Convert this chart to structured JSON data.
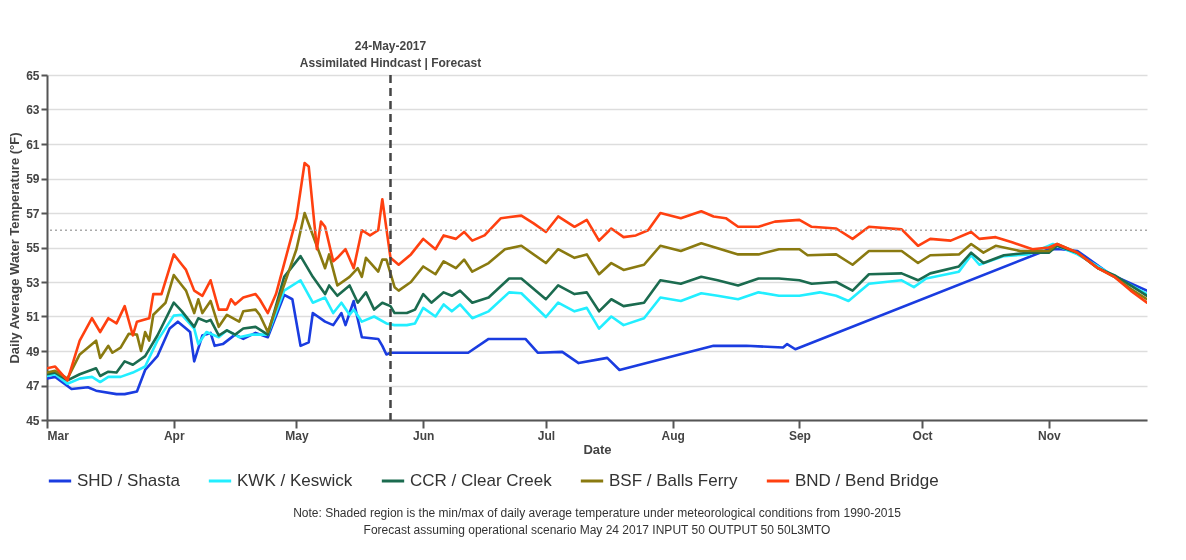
{
  "chart_data": {
    "type": "line",
    "xlabel": "Date",
    "ylabel": "Daily Average Water Temperature (°F)",
    "xlim": [
      "--03-01",
      "--11-25"
    ],
    "ylim": [
      45,
      65
    ],
    "yticks": [
      45,
      47,
      49,
      51,
      53,
      55,
      57,
      59,
      61,
      63,
      65
    ],
    "xticks": [
      {
        "value": "--03-01",
        "label": "Mar"
      },
      {
        "value": "--04-01",
        "label": "Apr"
      },
      {
        "value": "--05-01",
        "label": "May"
      },
      {
        "value": "--06-01",
        "label": "Jun"
      },
      {
        "value": "--07-01",
        "label": "Jul"
      },
      {
        "value": "--08-01",
        "label": "Aug"
      },
      {
        "value": "--09-01",
        "label": "Sep"
      },
      {
        "value": "--10-01",
        "label": "Oct"
      },
      {
        "value": "--11-01",
        "label": "Nov"
      }
    ],
    "grid": "y",
    "legend": "bottom",
    "line_style": "solid",
    "ref_lines": [
      {
        "axis": "x",
        "value": "--05-24",
        "label": "24-May-2017",
        "line_style": "dashed",
        "color": "#444444"
      },
      {
        "axis": "y",
        "value": 56,
        "line_style": "dotted",
        "color": "#aaaaaa"
      }
    ],
    "annotations": [
      {
        "text": "Assimilated Hindcast | Forecast",
        "x": "--05-24",
        "y": 65
      },
      "Note: Shaded region is the min/max of daily average temperature under meteorological conditions from 1990-2015",
      "Forecast assuming operational scenario May 24 2017 INPUT 50 OUTPUT 50 50L3MTO"
    ],
    "series": [
      {
        "name": "SHD / Shasta",
        "color": "#1a3ce0",
        "x": [
          "--03-01",
          "--03-03",
          "--03-07",
          "--03-11",
          "--03-13",
          "--03-18",
          "--03-20",
          "--03-23",
          "--03-25",
          "--03-28",
          "--03-31",
          "--04-02",
          "--04-04",
          "--04-05",
          "--04-06",
          "--04-08",
          "--04-10",
          "--04-11",
          "--04-13",
          "--04-16",
          "--04-18",
          "--04-21",
          "--04-24",
          "--04-28",
          "--04-30",
          "--05-02",
          "--05-04",
          "--05-05",
          "--05-08",
          "--05-10",
          "--05-12",
          "--05-13",
          "--05-15",
          "--05-17",
          "--05-21",
          "--05-22",
          "--05-23",
          "--05-24",
          "--06-01",
          "--06-12",
          "--06-17",
          "--06-26",
          "--06-29",
          "--07-05",
          "--07-09",
          "--07-16",
          "--07-19",
          "--08-01",
          "--08-11",
          "--08-19",
          "--08-28",
          "--08-29",
          "--08-31",
          "--11-01",
          "--11-04",
          "--11-08",
          "--11-16",
          "--11-25"
        ],
        "values": [
          47.4,
          47.5,
          46.8,
          46.9,
          46.7,
          46.5,
          46.5,
          46.65,
          47.9,
          48.7,
          50.3,
          50.7,
          50.3,
          50.1,
          48.4,
          49.9,
          50.05,
          49.3,
          49.4,
          49.95,
          49.7,
          50.05,
          49.8,
          52.25,
          52.0,
          49.3,
          49.5,
          51.2,
          50.7,
          50.5,
          51.2,
          50.5,
          51.9,
          49.8,
          49.7,
          49.3,
          48.8,
          48.9,
          48.9,
          48.9,
          49.7,
          49.7,
          48.9,
          48.95,
          48.3,
          48.6,
          47.9,
          48.7,
          49.3,
          49.3,
          49.2,
          49.4,
          49.1,
          54.9,
          54.9,
          54.8,
          53.45,
          52.5
        ]
      },
      {
        "name": "KWK / Keswick",
        "color": "#22eeff",
        "x": [
          "--03-01",
          "--03-03",
          "--03-06",
          "--03-09",
          "--03-12",
          "--03-14",
          "--03-16",
          "--03-19",
          "--03-22",
          "--03-25",
          "--03-28",
          "--04-01",
          "--04-03",
          "--04-06",
          "--04-07",
          "--04-09",
          "--04-12",
          "--04-14",
          "--04-17",
          "--04-20",
          "--04-24",
          "--04-28",
          "--05-02",
          "--05-05",
          "--05-08",
          "--05-10",
          "--05-12",
          "--05-14",
          "--05-15",
          "--05-17",
          "--05-20",
          "--05-23",
          "--05-25",
          "--05-28",
          "--05-30",
          "--06-01",
          "--06-04",
          "--06-06",
          "--06-08",
          "--06-10",
          "--06-13",
          "--06-17",
          "--06-22",
          "--06-25",
          "--07-01",
          "--07-04",
          "--07-08",
          "--07-11",
          "--07-14",
          "--07-17",
          "--07-20",
          "--07-25",
          "--07-29",
          "--08-03",
          "--08-08",
          "--08-12",
          "--08-17",
          "--08-22",
          "--08-27",
          "--09-01",
          "--09-06",
          "--09-10",
          "--09-13",
          "--09-18",
          "--09-26",
          "--09-29",
          "--10-02",
          "--10-10",
          "--10-13",
          "--10-15",
          "--10-21",
          "--10-27",
          "--11-02",
          "--11-08",
          "--11-13",
          "--11-18",
          "--11-25"
        ],
        "values": [
          47.55,
          47.65,
          47.1,
          47.4,
          47.5,
          47.2,
          47.5,
          47.5,
          47.75,
          48.1,
          49.6,
          51.05,
          51.1,
          50.3,
          49.4,
          50.1,
          49.8,
          50.2,
          49.8,
          49.95,
          49.95,
          52.5,
          53.1,
          51.8,
          52.1,
          51.2,
          51.8,
          51.1,
          51.4,
          50.7,
          51.0,
          50.6,
          50.5,
          50.5,
          50.6,
          51.5,
          51.0,
          51.7,
          51.3,
          51.7,
          50.9,
          51.3,
          52.4,
          52.35,
          50.97,
          51.8,
          51.3,
          51.5,
          50.3,
          51.0,
          50.5,
          50.9,
          52.1,
          51.9,
          52.35,
          52.2,
          52.0,
          52.4,
          52.2,
          52.2,
          52.4,
          52.2,
          51.9,
          52.9,
          53.1,
          52.7,
          53.2,
          53.6,
          54.55,
          54.0,
          54.5,
          54.6,
          55.2,
          54.6,
          53.9,
          53.2,
          52.3
        ]
      },
      {
        "name": "CCR / Clear Creek",
        "color": "#1b6b4f",
        "x": [
          "--03-01",
          "--03-03",
          "--03-06",
          "--03-09",
          "--03-13",
          "--03-14",
          "--03-16",
          "--03-18",
          "--03-20",
          "--03-22",
          "--03-25",
          "--03-28",
          "--04-01",
          "--04-03",
          "--04-06",
          "--04-07",
          "--04-09",
          "--04-10",
          "--04-12",
          "--04-14",
          "--04-16",
          "--04-18",
          "--04-21",
          "--04-24",
          "--04-28",
          "--05-02",
          "--05-05",
          "--05-08",
          "--05-09",
          "--05-11",
          "--05-14",
          "--05-16",
          "--05-18",
          "--05-20",
          "--05-22",
          "--05-24",
          "--05-25",
          "--05-28",
          "--05-30",
          "--06-01",
          "--06-03",
          "--06-06",
          "--06-08",
          "--06-10",
          "--06-13",
          "--06-17",
          "--06-22",
          "--06-25",
          "--07-01",
          "--07-04",
          "--07-08",
          "--07-11",
          "--07-14",
          "--07-17",
          "--07-20",
          "--07-25",
          "--07-29",
          "--08-03",
          "--08-08",
          "--08-12",
          "--08-17",
          "--08-22",
          "--08-27",
          "--09-01",
          "--09-04",
          "--09-10",
          "--09-14",
          "--09-18",
          "--09-26",
          "--09-30",
          "--10-03",
          "--10-10",
          "--10-13",
          "--10-16",
          "--10-21",
          "--10-27",
          "--11-01",
          "--11-03",
          "--11-08",
          "--11-13",
          "--11-17",
          "--11-21",
          "--11-25"
        ],
        "values": [
          47.65,
          47.75,
          47.3,
          47.65,
          48.0,
          47.55,
          47.8,
          47.75,
          48.4,
          48.2,
          48.7,
          49.9,
          51.8,
          51.3,
          50.4,
          50.9,
          50.7,
          50.8,
          49.9,
          50.2,
          49.95,
          50.3,
          50.4,
          49.95,
          53.3,
          54.5,
          53.3,
          52.3,
          52.8,
          52.2,
          52.8,
          51.8,
          52.4,
          51.4,
          51.8,
          51.6,
          51.2,
          51.2,
          51.4,
          52.3,
          51.8,
          52.4,
          52.2,
          52.5,
          51.8,
          52.1,
          53.2,
          53.2,
          52.0,
          52.8,
          52.3,
          52.4,
          51.3,
          52.0,
          51.6,
          51.8,
          53.1,
          52.9,
          53.3,
          53.1,
          52.8,
          53.2,
          53.2,
          53.1,
          52.9,
          53.0,
          52.5,
          53.45,
          53.5,
          53.1,
          53.5,
          53.9,
          54.7,
          54.1,
          54.55,
          54.7,
          54.7,
          55.1,
          54.7,
          53.8,
          53.4,
          52.8,
          52.2
        ]
      },
      {
        "name": "BSF / Balls Ferry",
        "color": "#8a7a10",
        "x": [
          "--03-01",
          "--03-03",
          "--03-06",
          "--03-09",
          "--03-13",
          "--03-14",
          "--03-16",
          "--03-17",
          "--03-19",
          "--03-21",
          "--03-23",
          "--03-24",
          "--03-25",
          "--03-26",
          "--03-27",
          "--03-30",
          "--04-01",
          "--04-03",
          "--04-04",
          "--04-06",
          "--04-07",
          "--04-08",
          "--04-10",
          "--04-12",
          "--04-14",
          "--04-17",
          "--04-18",
          "--04-21",
          "--04-22",
          "--04-24",
          "--05-01",
          "--05-03",
          "--05-08",
          "--05-09",
          "--05-11",
          "--05-14",
          "--05-16",
          "--05-17",
          "--05-18",
          "--05-21",
          "--05-22",
          "--05-23",
          "--05-25",
          "--05-26",
          "--05-29",
          "--06-01",
          "--06-04",
          "--06-06",
          "--06-09",
          "--06-11",
          "--06-13",
          "--06-17",
          "--06-21",
          "--06-25",
          "--07-01",
          "--07-04",
          "--07-08",
          "--07-11",
          "--07-14",
          "--07-17",
          "--07-20",
          "--07-25",
          "--07-29",
          "--08-03",
          "--08-08",
          "--08-12",
          "--08-17",
          "--08-22",
          "--08-27",
          "--09-01",
          "--09-03",
          "--09-10",
          "--09-14",
          "--09-18",
          "--09-26",
          "--09-30",
          "--10-03",
          "--10-10",
          "--10-13",
          "--10-16",
          "--10-19",
          "--10-25",
          "--11-01",
          "--11-03",
          "--11-08",
          "--11-13",
          "--11-17",
          "--11-21",
          "--11-25"
        ],
        "values": [
          47.75,
          47.85,
          47.4,
          48.8,
          49.6,
          48.6,
          49.3,
          48.9,
          49.2,
          50.0,
          49.95,
          49.0,
          50.1,
          49.6,
          51.1,
          51.8,
          53.4,
          52.8,
          52.5,
          51.2,
          52.0,
          51.2,
          51.9,
          50.4,
          51.1,
          50.7,
          51.3,
          51.4,
          51.1,
          50.1,
          54.9,
          57.0,
          53.8,
          54.6,
          52.8,
          53.3,
          53.8,
          53.3,
          54.4,
          53.6,
          54.3,
          54.3,
          52.7,
          52.5,
          53.0,
          53.9,
          53.45,
          54.2,
          53.8,
          54.3,
          53.6,
          54.1,
          54.9,
          55.1,
          54.1,
          54.9,
          54.4,
          54.6,
          53.45,
          54.1,
          53.7,
          54.0,
          55.1,
          54.8,
          55.25,
          54.95,
          54.6,
          54.6,
          54.9,
          54.9,
          54.55,
          54.6,
          54.0,
          54.8,
          54.8,
          54.1,
          54.55,
          54.6,
          55.2,
          54.7,
          55.1,
          54.8,
          54.8,
          55.2,
          54.7,
          53.8,
          53.3,
          52.6,
          52.0
        ]
      },
      {
        "name": "BND / Bend Bridge",
        "color": "#ff4010",
        "x": [
          "--03-01",
          "--03-03",
          "--03-06",
          "--03-09",
          "--03-12",
          "--03-14",
          "--03-16",
          "--03-18",
          "--03-20",
          "--03-22",
          "--03-23",
          "--03-26",
          "--03-27",
          "--03-29",
          "--04-01",
          "--04-03",
          "--04-04",
          "--04-06",
          "--04-08",
          "--04-10",
          "--04-12",
          "--04-14",
          "--04-15",
          "--04-16",
          "--04-18",
          "--04-21",
          "--04-22",
          "--04-24",
          "--04-26",
          "--05-01",
          "--05-03",
          "--05-04",
          "--05-06",
          "--05-07",
          "--05-08",
          "--05-10",
          "--05-11",
          "--05-13",
          "--05-15",
          "--05-17",
          "--05-19",
          "--05-21",
          "--05-22",
          "--05-24",
          "--05-26",
          "--05-29",
          "--06-01",
          "--06-04",
          "--06-06",
          "--06-09",
          "--06-11",
          "--06-13",
          "--06-16",
          "--06-20",
          "--06-25",
          "--06-28",
          "--07-01",
          "--07-04",
          "--07-08",
          "--07-11",
          "--07-14",
          "--07-17",
          "--07-20",
          "--07-23",
          "--07-26",
          "--07-29",
          "--08-03",
          "--08-08",
          "--08-11",
          "--08-14",
          "--08-17",
          "--08-22",
          "--08-26",
          "--09-01",
          "--09-04",
          "--09-10",
          "--09-14",
          "--09-18",
          "--09-26",
          "--09-30",
          "--10-03",
          "--10-08",
          "--10-13",
          "--10-15",
          "--10-19",
          "--10-23",
          "--10-28",
          "--11-01",
          "--11-03",
          "--11-08",
          "--11-13",
          "--11-17",
          "--11-21",
          "--11-25"
        ],
        "values": [
          48.0,
          48.1,
          47.3,
          49.6,
          50.9,
          50.1,
          50.9,
          50.6,
          51.6,
          49.9,
          50.7,
          50.9,
          52.3,
          52.3,
          54.6,
          54.0,
          53.7,
          52.5,
          52.2,
          53.1,
          51.4,
          51.4,
          52.0,
          51.7,
          52.1,
          52.3,
          52.0,
          51.2,
          52.3,
          56.7,
          59.9,
          59.7,
          54.9,
          56.5,
          56.2,
          54.2,
          54.4,
          54.9,
          53.8,
          56.0,
          55.7,
          56.0,
          57.8,
          54.4,
          54.0,
          54.6,
          55.5,
          54.9,
          55.7,
          55.5,
          55.9,
          55.4,
          55.7,
          56.7,
          56.85,
          56.4,
          55.9,
          56.8,
          56.2,
          56.6,
          55.4,
          56.1,
          55.6,
          55.7,
          56.0,
          57.0,
          56.7,
          57.1,
          56.8,
          56.7,
          56.2,
          56.2,
          56.5,
          56.6,
          56.2,
          56.1,
          55.5,
          56.2,
          56.05,
          55.1,
          55.5,
          55.4,
          55.9,
          55.5,
          55.6,
          55.3,
          54.9,
          55.0,
          55.2,
          54.7,
          53.8,
          53.3,
          52.5,
          51.8
        ]
      }
    ]
  }
}
